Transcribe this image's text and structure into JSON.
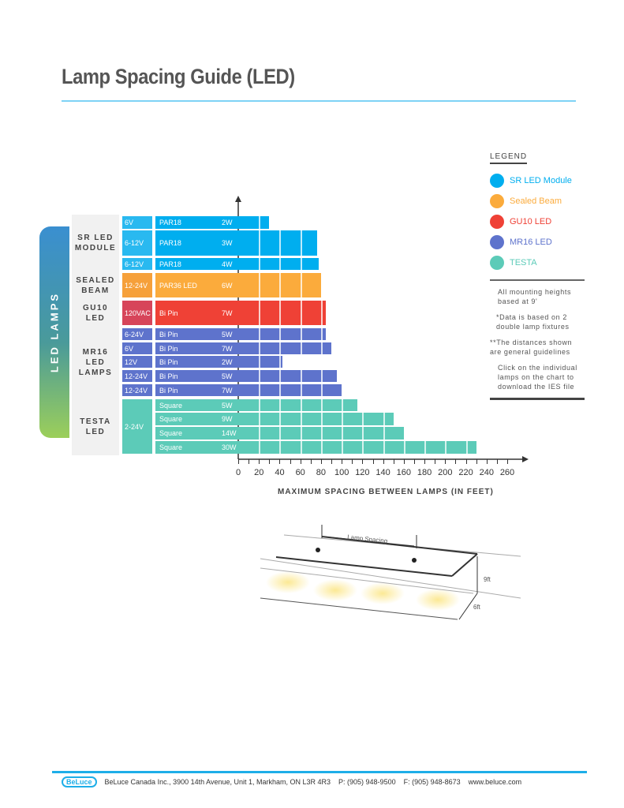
{
  "title": "Lamp Spacing Guide (LED)",
  "side_label": "LED LAMPS",
  "legend": {
    "title": "LEGEND",
    "items": [
      {
        "label": "SR LED Module",
        "color": "#00aeef"
      },
      {
        "label": "Sealed Beam",
        "color": "#fbab3c"
      },
      {
        "label": "GU10 LED",
        "color": "#ef4136"
      },
      {
        "label": "MR16 LED",
        "color": "#5e73cc"
      },
      {
        "label": "TESTA",
        "color": "#5ccbb8"
      }
    ],
    "notes": [
      "All mounting heights based at 9'",
      "*Data is based on 2 double lamp fixtures",
      "**The distances shown are general guidelines",
      "Click on the individual lamps on the chart to download the IES file"
    ]
  },
  "chart_data": {
    "type": "bar",
    "orientation": "horizontal",
    "xlabel": "MAXIMUM SPACING BETWEEN LAMPS (IN FEET)",
    "xlim": [
      0,
      260
    ],
    "xticks": [
      0,
      20,
      40,
      60,
      80,
      100,
      120,
      140,
      160,
      180,
      200,
      220,
      240,
      260
    ],
    "groups": [
      {
        "name": "SR LED\nMODULE",
        "color": "#00aeef",
        "vcolor": "#29b9f0"
      },
      {
        "name": "SEALED\nBEAM",
        "color": "#fbab3c",
        "vcolor": "#f6a03a"
      },
      {
        "name": "GU10 LED",
        "color": "#ef4136",
        "vcolor": "#d7455a"
      },
      {
        "name": "MR16\nLED\nLAMPS",
        "color": "#5e73cc",
        "vcolor": "#5e73cc"
      },
      {
        "name": "TESTA\nLED",
        "color": "#5ccbb8",
        "vcolor": "#5ccbb8",
        "shared_voltage": "2-24V"
      }
    ],
    "rows": [
      {
        "group": 0,
        "voltage": "6V",
        "type": "PAR18",
        "watt": "2W",
        "value": 30
      },
      {
        "group": 0,
        "voltage": "6-12V",
        "type": "PAR18",
        "watt": "3W",
        "value": 76
      },
      {
        "group": 0,
        "voltage": "6-12V",
        "type": "PAR18",
        "watt": "4W",
        "value": 78
      },
      {
        "group": 1,
        "voltage": "12-24V",
        "type": "PAR36 LED",
        "watt": "6W",
        "value": 80
      },
      {
        "group": 2,
        "voltage": "120VAC",
        "type": "Bi Pin",
        "watt": "7W",
        "value": 85
      },
      {
        "group": 3,
        "voltage": "6-24V",
        "type": "Bi Pin",
        "watt": "5W",
        "value": 85
      },
      {
        "group": 3,
        "voltage": "6V",
        "type": "Bi Pin",
        "watt": "7W",
        "value": 90
      },
      {
        "group": 3,
        "voltage": "12V",
        "type": "Bi Pin",
        "watt": "2W",
        "value": 43
      },
      {
        "group": 3,
        "voltage": "12-24V",
        "type": "Bi Pin",
        "watt": "5W",
        "value": 95
      },
      {
        "group": 3,
        "voltage": "12-24V",
        "type": "Bi Pin",
        "watt": "7W",
        "value": 100
      },
      {
        "group": 4,
        "voltage": "",
        "type": "Square",
        "watt": "5W",
        "value": 115
      },
      {
        "group": 4,
        "voltage": "",
        "type": "Square",
        "watt": "9W",
        "value": 150
      },
      {
        "group": 4,
        "voltage": "",
        "type": "Square",
        "watt": "14W",
        "value": 160
      },
      {
        "group": 4,
        "voltage": "",
        "type": "Square",
        "watt": "30W",
        "value": 230
      }
    ]
  },
  "diagram": {
    "spacing_label": "Lamp Spacing",
    "height_label": "9ft",
    "width_label": "6ft"
  },
  "footer": {
    "logo": "BeLuce",
    "address": "BeLuce Canada Inc., 3900 14th Avenue, Unit 1, Markham, ON L3R 4R3",
    "phone": "P: (905) 948-9500",
    "fax": "F: (905) 948-8673",
    "web": "www.beluce.com"
  }
}
